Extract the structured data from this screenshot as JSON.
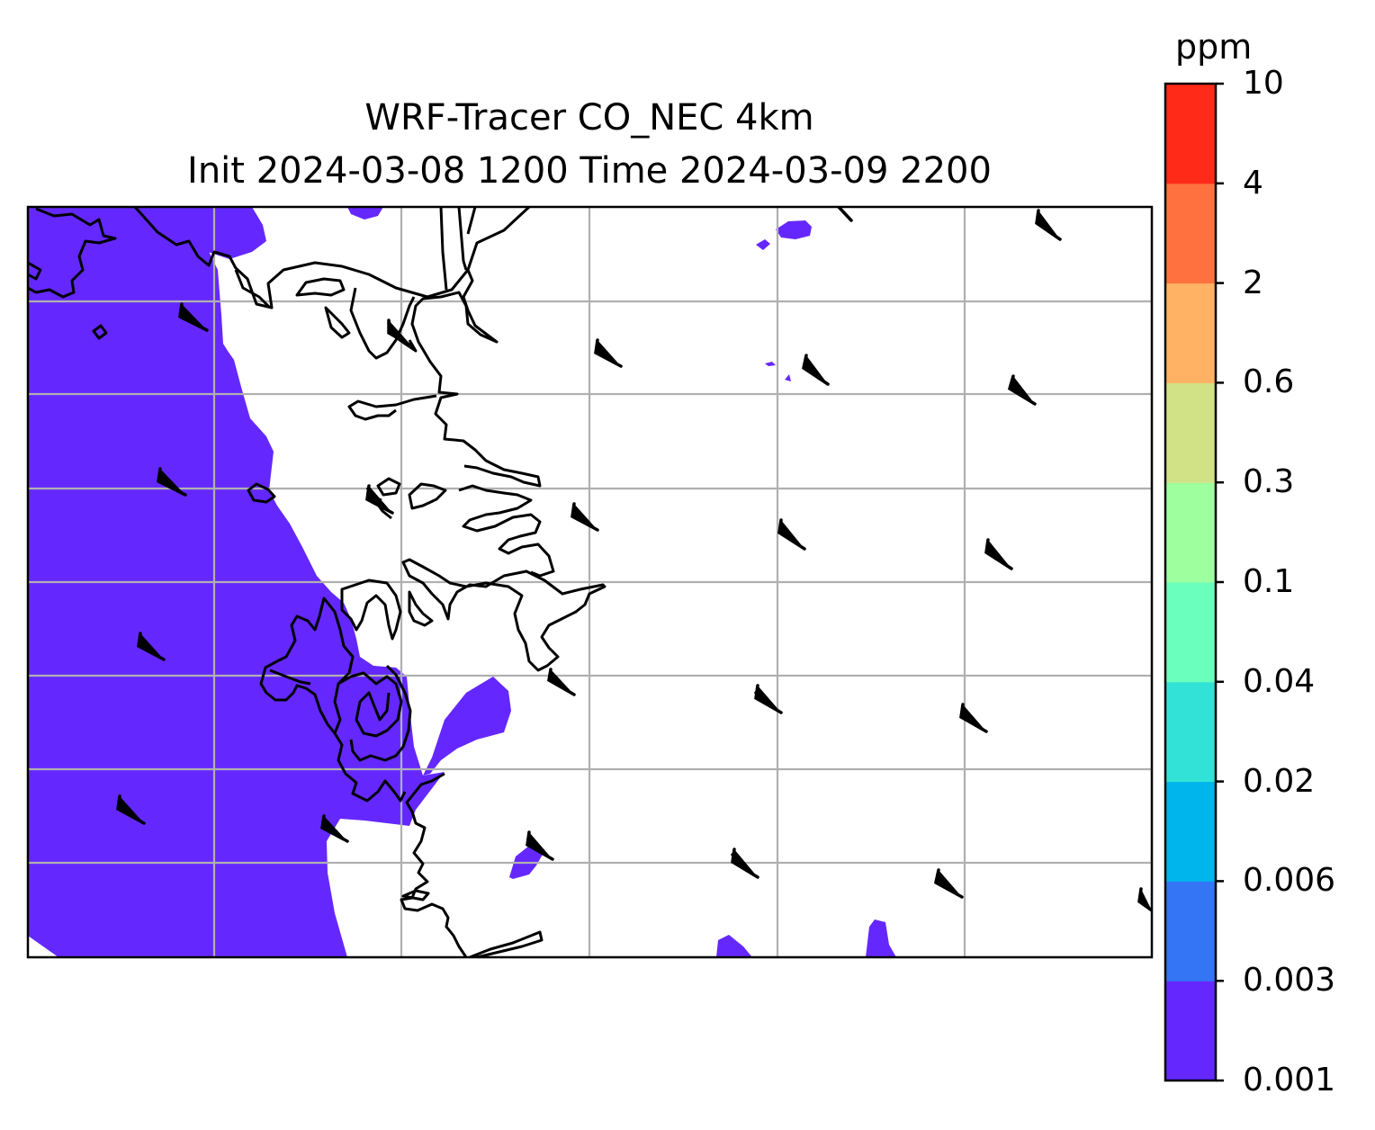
{
  "title_line1": "WRF-Tracer CO_NEC 4km",
  "title_line2": "Init 2024-03-08 1200 Time 2024-03-09 2200",
  "colorbar": {
    "unit": "ppm",
    "levels": [
      "0.001",
      "0.003",
      "0.006",
      "0.02",
      "0.04",
      "0.1",
      "0.3",
      "0.6",
      "2",
      "4",
      "10"
    ],
    "colors": [
      "#6428ff",
      "#3375f5",
      "#00b5ec",
      "#33e2d6",
      "#6bffbe",
      "#9dff9e",
      "#d1e286",
      "#ffb264",
      "#ff7240",
      "#ff2a18"
    ]
  },
  "map": {
    "tracer_fill_color": "#6428ff",
    "coastline_color": "#000000",
    "gridline_color": "#b0b0b0",
    "wind_barb_color": "#000000"
  }
}
